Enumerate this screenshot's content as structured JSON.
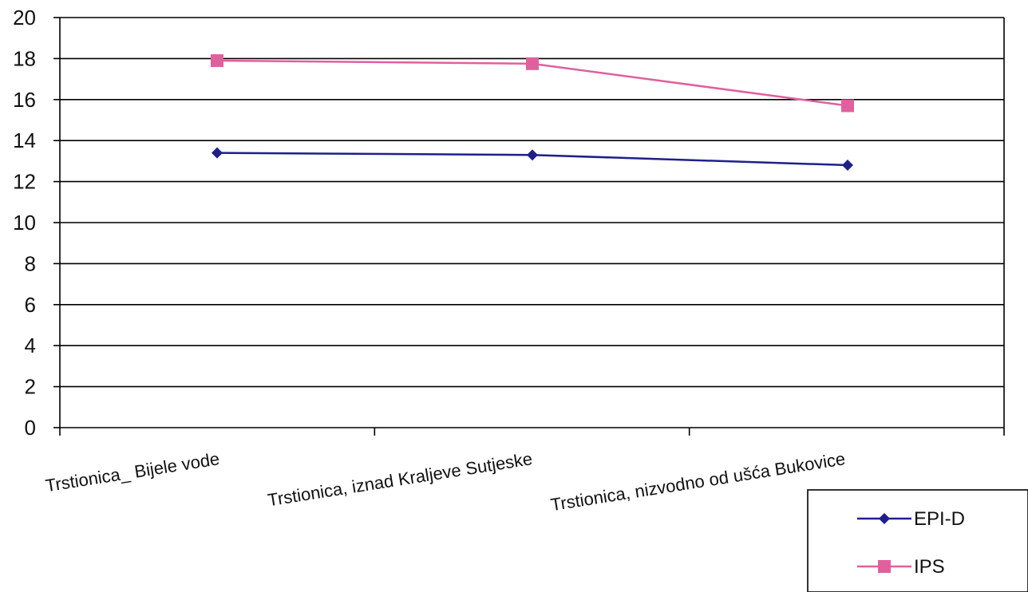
{
  "chart_data": {
    "type": "line",
    "categories": [
      "Trstionica_ Bijele vode",
      "Trstionica, iznad Kraljeve Sutjeske",
      "Trstionica, nizvodno od ušća Bukovice"
    ],
    "series": [
      {
        "name": "EPI-D",
        "values": [
          13.4,
          13.3,
          12.8
        ],
        "color": "#1f1f8c",
        "marker": "diamond"
      },
      {
        "name": "IPS",
        "values": [
          17.9,
          17.75,
          15.7
        ],
        "color": "#e0609e",
        "marker": "square"
      }
    ],
    "ylim": [
      0,
      20
    ],
    "yticks": [
      0,
      2,
      4,
      6,
      8,
      10,
      12,
      14,
      16,
      18,
      20
    ],
    "grid": true,
    "legend_position": "bottom-right",
    "title": "",
    "xlabel": "",
    "ylabel": ""
  }
}
